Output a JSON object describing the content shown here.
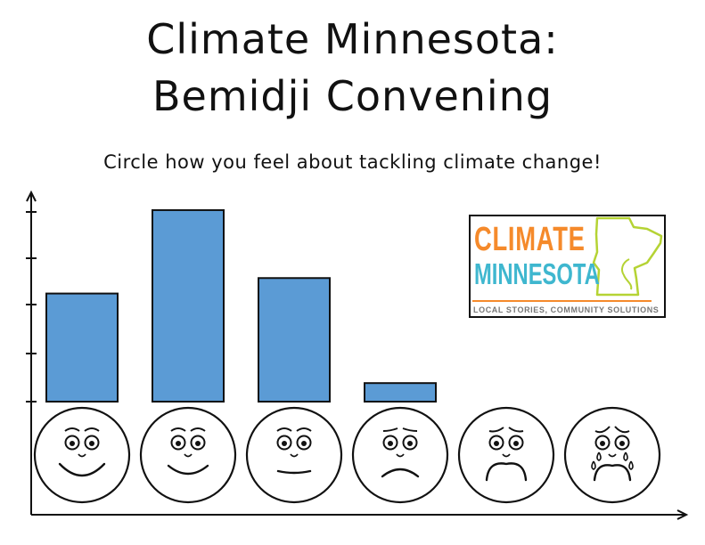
{
  "header": {
    "title_line1": "Climate Minnesota:",
    "title_line2": "Bemidji Convening",
    "subtitle": "Circle how you feel about tackling climate change!"
  },
  "logo": {
    "word1": "CLIMATE",
    "word2": "MINNESOTA",
    "tagline": "LOCAL STORIES, COMMUNITY SOLUTIONS",
    "color_orange": "#f58a2b",
    "color_teal": "#3fb7cf",
    "color_green": "#b5d334"
  },
  "chart_data": {
    "type": "bar",
    "title": "Circle how you feel about tackling climate change!",
    "categories": [
      "very-happy-face-icon",
      "happy-face-icon",
      "neutral-face-icon",
      "worried-face-icon",
      "sad-face-icon",
      "crying-face-icon"
    ],
    "values": [
      3.5,
      6.2,
      4.0,
      0.6,
      0,
      0
    ],
    "ylim": [
      0,
      6.4
    ],
    "y_ticks": 5,
    "grid": false,
    "bar_color": "#5b9bd5"
  }
}
